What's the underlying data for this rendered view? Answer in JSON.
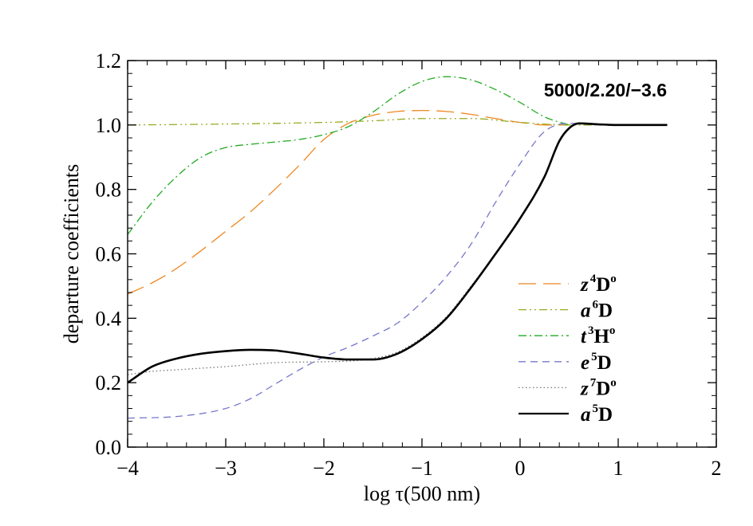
{
  "chart_data": {
    "type": "line",
    "title": "5000/2.20/−3.6",
    "xlabel": "log τ(500 nm)",
    "ylabel": "departure coefficients",
    "xlim": [
      -4,
      2
    ],
    "ylim": [
      0.0,
      1.2
    ],
    "xticks": [
      -4,
      -3,
      -2,
      -1,
      0,
      1,
      2
    ],
    "xtick_labels": [
      "−4",
      "−3",
      "−2",
      "−1",
      "0",
      "1",
      "2"
    ],
    "yticks": [
      0.0,
      0.2,
      0.4,
      0.6,
      0.8,
      1.0,
      1.2
    ],
    "ytick_labels": [
      "0.0",
      "0.2",
      "0.4",
      "0.6",
      "0.8",
      "1.0",
      "1.2"
    ],
    "legend_position": "lower-right",
    "series": [
      {
        "name": "z4Do",
        "legend": {
          "letter": "z",
          "sup": "4",
          "term": "D",
          "parity": "o"
        },
        "color": "#ee8822",
        "dash": "long-dash",
        "x": [
          -4.0,
          -3.75,
          -3.5,
          -3.25,
          -3.0,
          -2.75,
          -2.5,
          -2.25,
          -2.0,
          -1.75,
          -1.5,
          -1.25,
          -1.0,
          -0.75,
          -0.5,
          -0.25,
          0.0,
          0.25,
          0.5
        ],
        "y": [
          0.475,
          0.51,
          0.555,
          0.61,
          0.67,
          0.73,
          0.8,
          0.875,
          0.955,
          1.005,
          1.03,
          1.042,
          1.045,
          1.042,
          1.033,
          1.02,
          1.008,
          1.0,
          1.0
        ]
      },
      {
        "name": "a6D",
        "legend": {
          "letter": "a",
          "sup": "6",
          "term": "D",
          "parity": ""
        },
        "color": "#99aa22",
        "dash": "dash-dot-dot",
        "x": [
          -4.0,
          -3.0,
          -2.0,
          -1.5,
          -1.0,
          -0.5,
          0.0,
          0.5,
          1.0
        ],
        "y": [
          1.0,
          1.003,
          1.008,
          1.013,
          1.02,
          1.02,
          1.008,
          1.0,
          1.0
        ]
      },
      {
        "name": "t3Ho",
        "legend": {
          "letter": "t",
          "sup": "3",
          "term": "H",
          "parity": "o"
        },
        "color": "#22aa22",
        "dash": "dash-dot",
        "x": [
          -4.0,
          -3.75,
          -3.5,
          -3.25,
          -3.0,
          -2.75,
          -2.5,
          -2.25,
          -2.0,
          -1.75,
          -1.5,
          -1.25,
          -1.0,
          -0.75,
          -0.5,
          -0.25,
          0.0,
          0.25,
          0.5
        ],
        "y": [
          0.66,
          0.76,
          0.84,
          0.9,
          0.93,
          0.94,
          0.947,
          0.955,
          0.97,
          0.995,
          1.04,
          1.095,
          1.135,
          1.15,
          1.14,
          1.11,
          1.07,
          1.025,
          1.0
        ]
      },
      {
        "name": "e5D",
        "legend": {
          "letter": "e",
          "sup": "5",
          "term": "D",
          "parity": ""
        },
        "color": "#7777cc",
        "dash": "dash",
        "x": [
          -4.0,
          -3.5,
          -3.0,
          -2.75,
          -2.5,
          -2.25,
          -2.0,
          -1.75,
          -1.5,
          -1.25,
          -1.0,
          -0.75,
          -0.5,
          -0.25,
          0.0,
          0.25,
          0.5,
          0.75,
          1.0
        ],
        "y": [
          0.09,
          0.095,
          0.12,
          0.15,
          0.195,
          0.24,
          0.28,
          0.31,
          0.345,
          0.385,
          0.45,
          0.53,
          0.63,
          0.76,
          0.88,
          0.98,
          1.005,
          1.002,
          1.0
        ]
      },
      {
        "name": "z7Do",
        "legend": {
          "letter": "z",
          "sup": "7",
          "term": "D",
          "parity": "o"
        },
        "color": "#777777",
        "dash": "dot",
        "x": [
          -4.0,
          -3.75,
          -3.5,
          -3.0,
          -2.5,
          -2.0,
          -1.75,
          -1.5,
          -1.25,
          -1.0,
          -0.75,
          -0.5,
          -0.25,
          0.0,
          0.25,
          0.4,
          0.5,
          0.6,
          1.0
        ],
        "y": [
          0.225,
          0.235,
          0.24,
          0.25,
          0.262,
          0.265,
          0.267,
          0.275,
          0.295,
          0.34,
          0.405,
          0.5,
          0.6,
          0.71,
          0.84,
          0.95,
          0.99,
          1.005,
          1.0
        ]
      },
      {
        "name": "a5D",
        "legend": {
          "letter": "a",
          "sup": "5",
          "term": "D",
          "parity": ""
        },
        "color": "#000000",
        "dash": "solid",
        "bold": true,
        "x": [
          -4.0,
          -3.75,
          -3.5,
          -3.25,
          -3.0,
          -2.75,
          -2.5,
          -2.25,
          -2.0,
          -1.75,
          -1.5,
          -1.25,
          -1.0,
          -0.75,
          -0.5,
          -0.25,
          0.0,
          0.25,
          0.4,
          0.5,
          0.6,
          0.8,
          1.0,
          1.5
        ],
        "y": [
          0.2,
          0.25,
          0.275,
          0.29,
          0.298,
          0.302,
          0.3,
          0.29,
          0.278,
          0.272,
          0.272,
          0.29,
          0.335,
          0.4,
          0.495,
          0.6,
          0.71,
          0.84,
          0.95,
          0.99,
          1.005,
          1.002,
          1.0,
          1.0
        ]
      }
    ]
  }
}
